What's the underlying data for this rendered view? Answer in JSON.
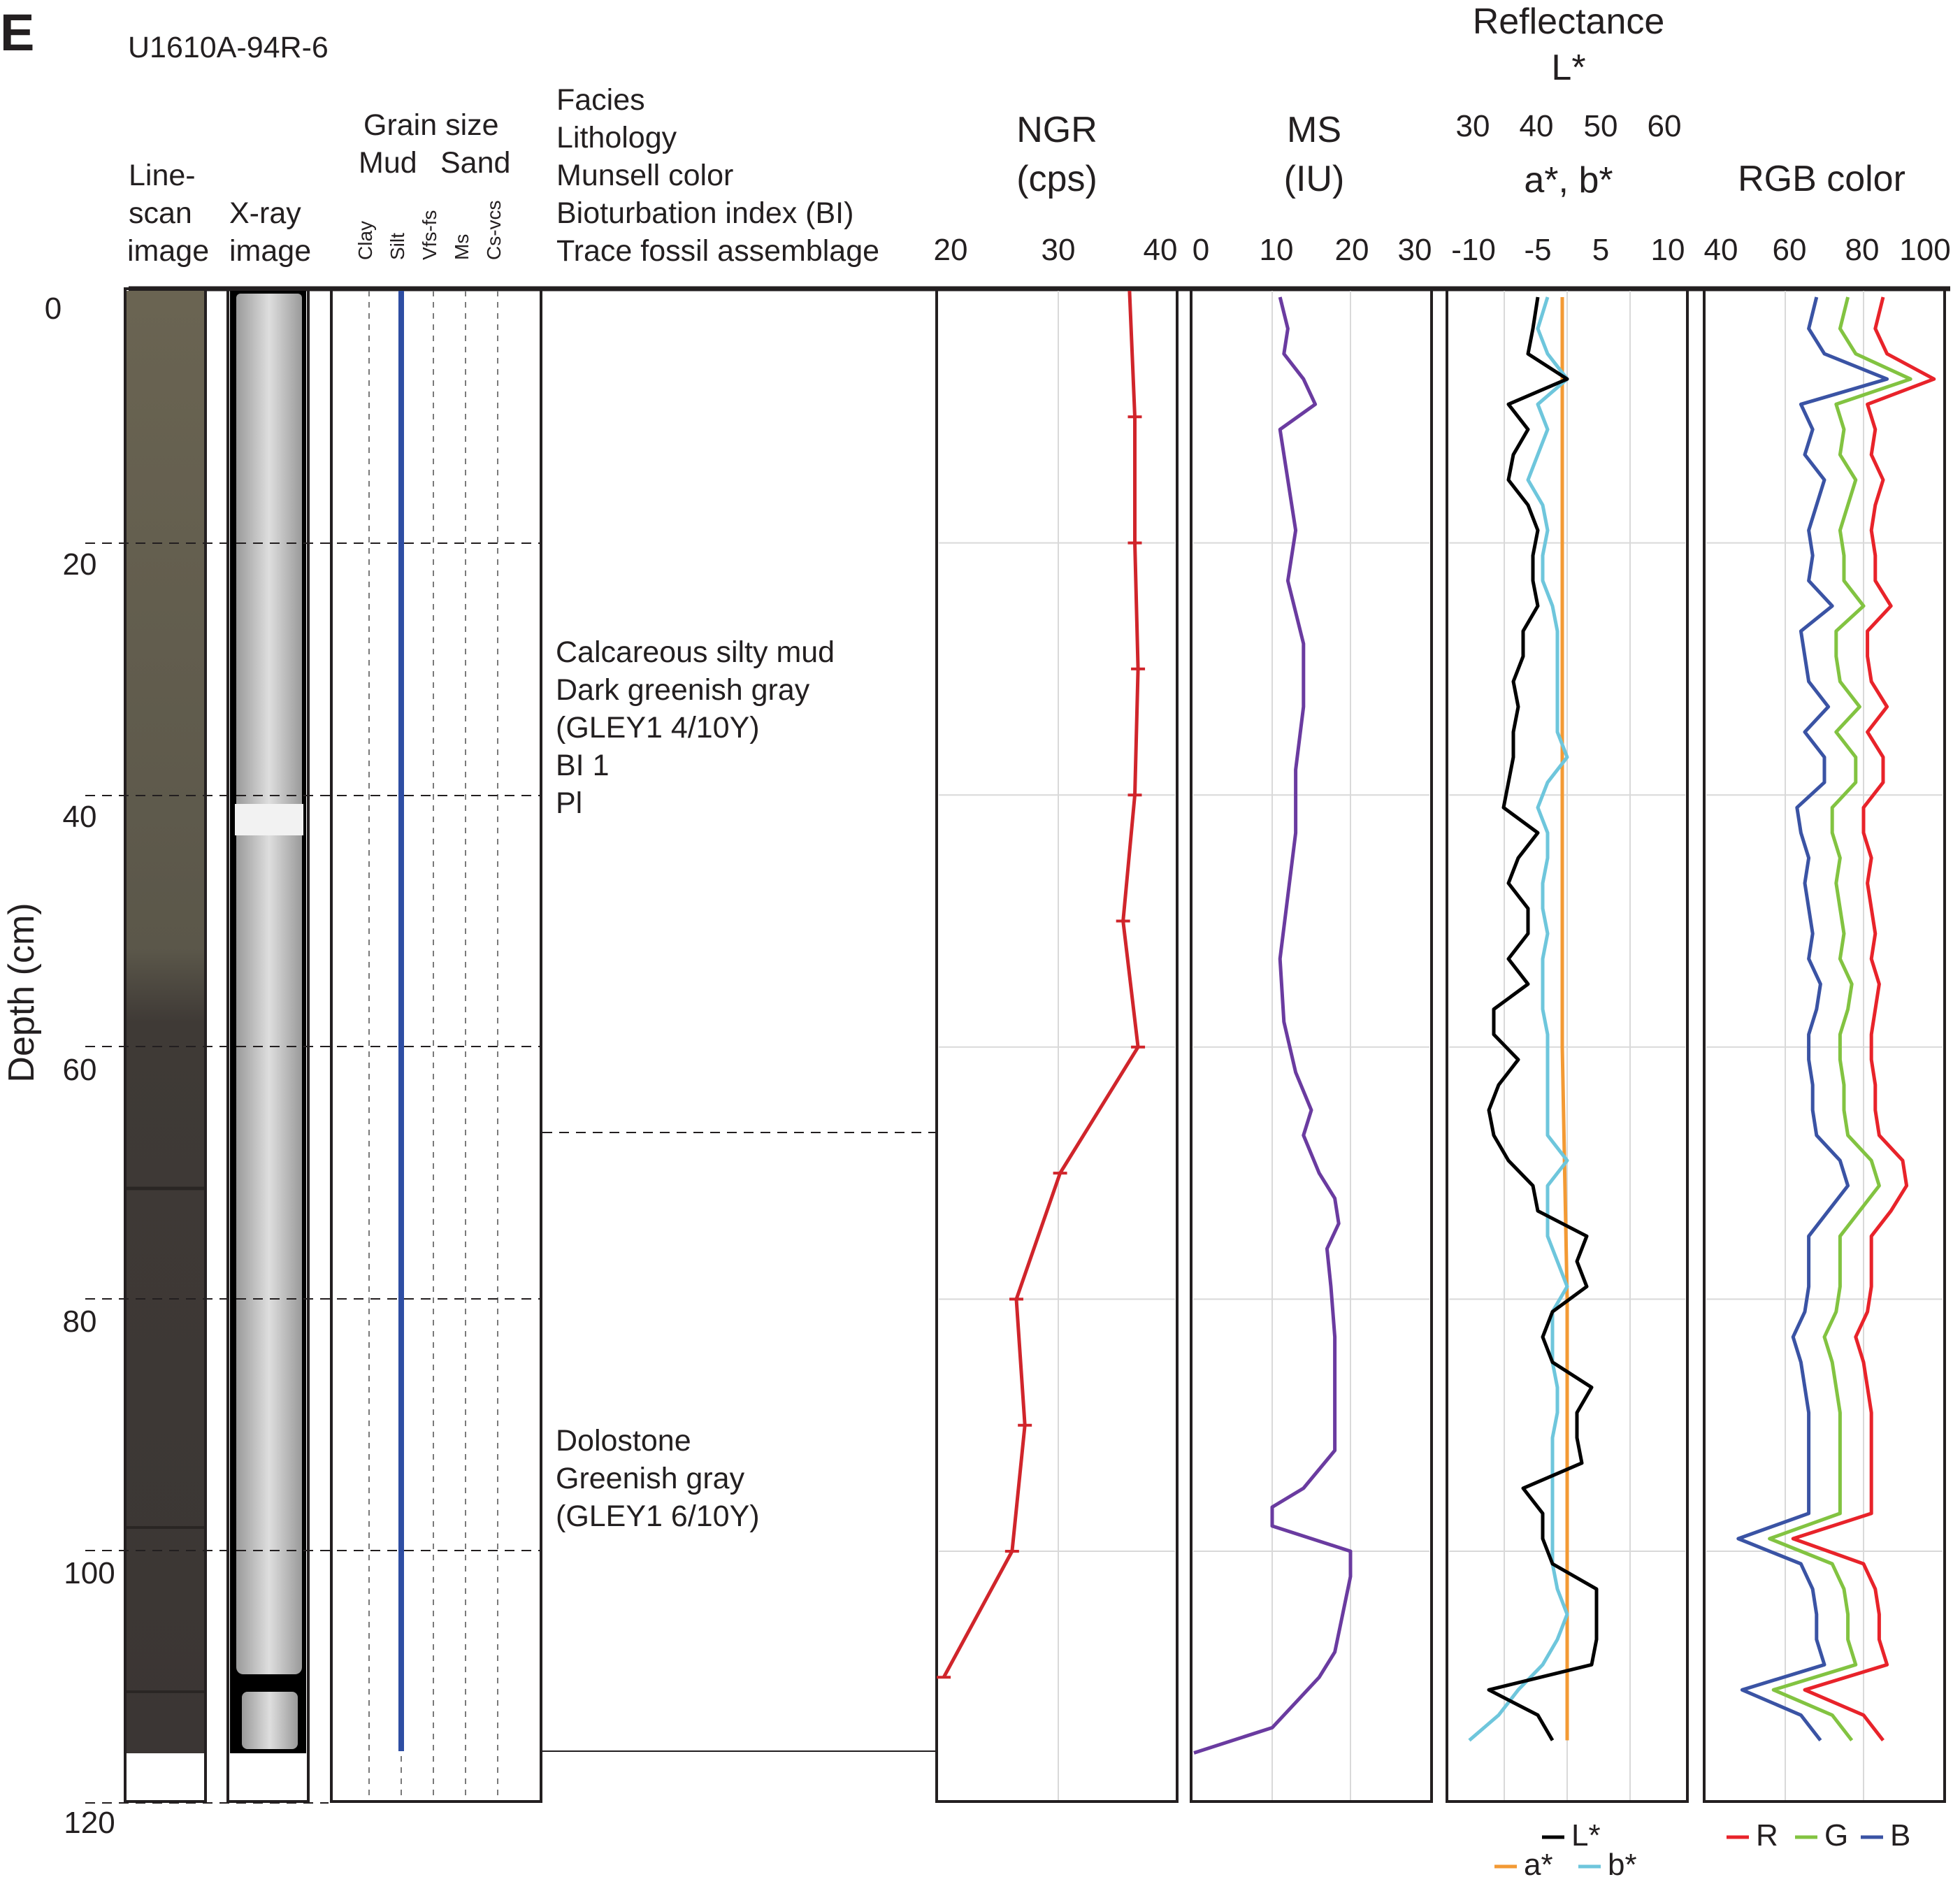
{
  "panel_letter": "E",
  "core_id": "U1610A-94R-6",
  "depth_axis": {
    "label": "Depth (cm)",
    "ticks": [
      "0",
      "20",
      "40",
      "60",
      "80",
      "100",
      "120"
    ]
  },
  "columns": {
    "linescan": [
      "Line-",
      "scan",
      "image"
    ],
    "xray": [
      "X-ray",
      "image"
    ],
    "grain_size": {
      "title": "Grain size",
      "mud": "Mud",
      "sand": "Sand",
      "classes": [
        "Clay",
        "Silt",
        "Vfs-fs",
        "Ms",
        "Cs-vcs"
      ]
    },
    "description": [
      "Facies",
      "Lithology",
      "Munsell color",
      "Bioturbation index (BI)",
      "Trace fossil assemblage"
    ]
  },
  "units": [
    {
      "lines": [
        "Calcareous silty mud",
        "Dark greenish gray",
        "(GLEY1 4/10Y)",
        "BI 1",
        "Pl"
      ]
    },
    {
      "lines": [
        "Dolostone",
        "Greenish gray",
        "(GLEY1 6/10Y)"
      ]
    }
  ],
  "colors": {
    "ngr": "#d0252b",
    "ms": "#6a3ba0",
    "lstar": "#000000",
    "astar": "#f39a34",
    "bstar": "#6ec6dc",
    "r": "#e8232a",
    "g": "#82c341",
    "b": "#3a53a4",
    "grain": "#2e4ea3"
  },
  "chart_data": [
    {
      "type": "line",
      "title": "NGR",
      "unit": "(cps)",
      "xlim": [
        20,
        42
      ],
      "xticks": [
        "20",
        "30",
        "40"
      ],
      "series": [
        {
          "depth_cm": [
            0,
            10,
            20,
            30,
            40,
            50,
            60,
            70,
            80,
            90,
            100,
            110
          ],
          "values": [
            37.8,
            38.3,
            38.3,
            38.6,
            38.3,
            37.2,
            38.6,
            31.3,
            27.2,
            28.0,
            26.8,
            20.4
          ]
        }
      ]
    },
    {
      "type": "line",
      "title": "MS",
      "unit": "(IU)",
      "xlim": [
        0,
        30
      ],
      "xticks": [
        "0",
        "10",
        "20",
        "30"
      ],
      "series": [
        {
          "depth_cm": [
            0.5,
            3,
            5,
            7,
            9,
            11,
            15,
            19,
            23,
            28,
            33,
            38,
            43,
            48,
            53,
            58,
            62,
            65,
            67,
            70,
            72,
            74,
            76,
            79,
            83,
            88,
            92,
            95,
            96.5,
            98,
            100,
            102,
            105,
            108,
            110,
            112,
            114,
            116
          ],
          "values": [
            11,
            12,
            11.5,
            14,
            15.5,
            11,
            12,
            13,
            12,
            14,
            14,
            13,
            13,
            12,
            11,
            11.5,
            13,
            15,
            14,
            16,
            18,
            18.5,
            17,
            17.5,
            18,
            18,
            18,
            14,
            10,
            10,
            20,
            20,
            19,
            18,
            16,
            13,
            10,
            0
          ]
        }
      ]
    },
    {
      "type": "line",
      "title": "Reflectance",
      "lstar_label": "L*",
      "lstar_ticks": [
        "30",
        "40",
        "50",
        "60"
      ],
      "ab_label": "a*, b*",
      "xlim": [
        -12,
        12
      ],
      "xticks": [
        "-10",
        "-5",
        "5",
        "10"
      ],
      "series": [
        {
          "name": "L*",
          "depth_cm": [
            0.5,
            3,
            5,
            7,
            9,
            11,
            13,
            15,
            17,
            19,
            21,
            23,
            25,
            27,
            29,
            31,
            33,
            35,
            37,
            39,
            41,
            43,
            45,
            47,
            49,
            51,
            53,
            55,
            57,
            59,
            61,
            63,
            65,
            67,
            69,
            71,
            73,
            75,
            77,
            79,
            81,
            83,
            85,
            87,
            89,
            91,
            93,
            95,
            97,
            99,
            101,
            103,
            105,
            107,
            109,
            111,
            113,
            115
          ],
          "values": [
            -3,
            -3.5,
            -4,
            0,
            -6,
            -4,
            -5.5,
            -6,
            -4,
            -3,
            -3.5,
            -3.5,
            -3,
            -4.5,
            -4.5,
            -5.5,
            -5,
            -5.5,
            -5.5,
            -6,
            -6.5,
            -3,
            -5,
            -6,
            -4,
            -4,
            -6,
            -4,
            -7.5,
            -7.5,
            -5,
            -7,
            -8,
            -7.5,
            -6,
            -3.5,
            -3,
            2,
            1,
            2,
            -1.5,
            -2.5,
            -1.5,
            2.5,
            1,
            1,
            1.5,
            -4.5,
            -2.5,
            -2.5,
            -1.5,
            3,
            3,
            3,
            2.5,
            -8,
            -3,
            -1.5
          ]
        },
        {
          "name": "a*",
          "depth_cm": [
            0.5,
            20,
            40,
            60,
            80,
            100,
            115
          ],
          "values": [
            -0.5,
            -0.5,
            -0.5,
            -0.5,
            0,
            0,
            0
          ]
        },
        {
          "name": "b*",
          "depth_cm": [
            0.5,
            3,
            5,
            7,
            9,
            11,
            13,
            15,
            17,
            19,
            21,
            23,
            25,
            27,
            29,
            31,
            33,
            35,
            37,
            39,
            41,
            43,
            45,
            47,
            49,
            51,
            53,
            55,
            57,
            59,
            61,
            63,
            65,
            67,
            69,
            71,
            73,
            75,
            77,
            79,
            81,
            83,
            85,
            87,
            89,
            91,
            93,
            95,
            97,
            99,
            101,
            103,
            105,
            107,
            109,
            111,
            113,
            115
          ],
          "values": [
            -2,
            -3,
            -2,
            0,
            -3,
            -2,
            -3,
            -4,
            -2.5,
            -2,
            -2.5,
            -2.5,
            -1.5,
            -1,
            -1,
            -1,
            -1,
            -1,
            0,
            -2,
            -3,
            -2,
            -2,
            -2.5,
            -2.5,
            -2,
            -2.5,
            -2.5,
            -2.5,
            -2,
            -2,
            -2,
            -2,
            -2,
            0,
            -2,
            -2,
            -2,
            -1,
            0,
            -1.5,
            -1.5,
            -1.5,
            -1,
            -1,
            -1.5,
            -1.5,
            -1.5,
            -1.5,
            -1.5,
            -1.5,
            -1,
            0,
            -1,
            -2.5,
            -5,
            -7,
            -10
          ]
        }
      ],
      "legend": [
        "L*",
        "a*",
        "b*"
      ]
    },
    {
      "type": "line",
      "title": "RGB color",
      "xlim": [
        40,
        100
      ],
      "xticks": [
        "40",
        "60",
        "80",
        "100"
      ],
      "series": [
        {
          "name": "R",
          "depth_cm": [
            0.5,
            3,
            5,
            7,
            9,
            11,
            13,
            15,
            17,
            19,
            21,
            23,
            25,
            27,
            29,
            31,
            33,
            35,
            37,
            39,
            41,
            43,
            45,
            47,
            49,
            51,
            53,
            55,
            57,
            59,
            61,
            63,
            65,
            67,
            69,
            71,
            73,
            75,
            77,
            79,
            81,
            83,
            85,
            87,
            89,
            91,
            93,
            95,
            97,
            99,
            101,
            103,
            105,
            107,
            109,
            111,
            113,
            115
          ],
          "values": [
            85,
            83,
            86,
            98,
            81,
            83,
            82,
            85,
            83,
            82,
            83,
            83,
            87,
            81,
            81,
            82,
            86,
            81,
            85,
            85,
            80,
            80,
            82,
            81,
            82,
            83,
            82,
            84,
            83,
            82,
            82,
            83,
            83,
            84,
            90,
            91,
            87,
            82,
            82,
            82,
            81,
            78,
            80,
            81,
            82,
            82,
            82,
            82,
            82,
            62,
            80,
            83,
            84,
            84,
            86,
            65,
            80,
            85
          ]
        },
        {
          "name": "G",
          "depth_cm": [
            0.5,
            3,
            5,
            7,
            9,
            11,
            13,
            15,
            17,
            19,
            21,
            23,
            25,
            27,
            29,
            31,
            33,
            35,
            37,
            39,
            41,
            43,
            45,
            47,
            49,
            51,
            53,
            55,
            57,
            59,
            61,
            63,
            65,
            67,
            69,
            71,
            73,
            75,
            77,
            79,
            81,
            83,
            85,
            87,
            89,
            91,
            93,
            95,
            97,
            99,
            101,
            103,
            105,
            107,
            109,
            111,
            113,
            115
          ],
          "values": [
            76,
            74,
            78,
            92,
            73,
            75,
            74,
            78,
            76,
            74,
            75,
            75,
            80,
            73,
            73,
            74,
            79,
            73,
            78,
            78,
            72,
            72,
            74,
            73,
            74,
            75,
            74,
            77,
            76,
            74,
            74,
            75,
            75,
            76,
            82,
            84,
            79,
            74,
            74,
            74,
            73,
            70,
            72,
            73,
            74,
            74,
            74,
            74,
            74,
            56,
            72,
            75,
            76,
            76,
            78,
            57,
            72,
            77
          ]
        },
        {
          "name": "B",
          "depth_cm": [
            0.5,
            3,
            5,
            7,
            9,
            11,
            13,
            15,
            17,
            19,
            21,
            23,
            25,
            27,
            29,
            31,
            33,
            35,
            37,
            39,
            41,
            43,
            45,
            47,
            49,
            51,
            53,
            55,
            57,
            59,
            61,
            63,
            65,
            67,
            69,
            71,
            73,
            75,
            77,
            79,
            81,
            83,
            85,
            87,
            89,
            91,
            93,
            95,
            97,
            99,
            101,
            103,
            105,
            107,
            109,
            111,
            113,
            115
          ],
          "values": [
            68,
            66,
            70,
            86,
            64,
            67,
            65,
            70,
            68,
            66,
            67,
            66,
            72,
            64,
            65,
            66,
            71,
            65,
            70,
            70,
            63,
            64,
            66,
            65,
            66,
            67,
            66,
            69,
            68,
            66,
            66,
            67,
            67,
            68,
            74,
            76,
            71,
            66,
            66,
            66,
            65,
            62,
            64,
            65,
            66,
            66,
            66,
            66,
            66,
            48,
            64,
            67,
            68,
            68,
            70,
            49,
            64,
            69
          ]
        }
      ],
      "legend": [
        "R",
        "G",
        "B"
      ]
    }
  ]
}
